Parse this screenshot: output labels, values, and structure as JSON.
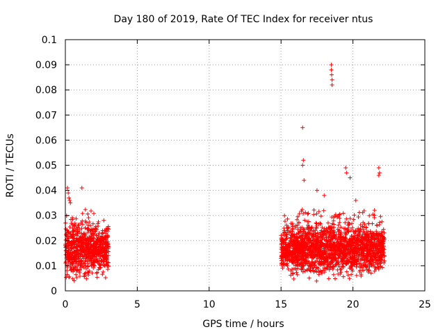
{
  "chart_data": {
    "type": "scatter",
    "title": "Day 180 of 2019, Rate Of TEC Index for receiver ntus",
    "xlabel": "GPS time / hours",
    "ylabel": "ROTI / TECUs",
    "xlim": [
      0,
      25
    ],
    "ylim": [
      0,
      0.1
    ],
    "xticks": [
      "0",
      "5",
      "10",
      "15",
      "20",
      "25"
    ],
    "yticks": [
      "0",
      "0.01",
      "0.02",
      "0.03",
      "0.04",
      "0.05",
      "0.06",
      "0.07",
      "0.08",
      "0.09",
      "0.1"
    ],
    "grid": true,
    "marker": "+",
    "series_color": "#ff0000",
    "clusters": [
      {
        "x_start": 0.0,
        "x_end": 3.0,
        "y_low": 0.003,
        "y_high": 0.03,
        "y_typical": 0.014
      },
      {
        "x_start": 15.0,
        "x_end": 22.2,
        "y_low": 0.003,
        "y_high": 0.03,
        "y_typical": 0.014
      }
    ],
    "outliers": [
      {
        "x": 0.15,
        "y": 0.041
      },
      {
        "x": 0.2,
        "y": 0.039
      },
      {
        "x": 0.25,
        "y": 0.037
      },
      {
        "x": 0.3,
        "y": 0.036
      },
      {
        "x": 0.35,
        "y": 0.035
      },
      {
        "x": 1.15,
        "y": 0.041
      },
      {
        "x": 16.5,
        "y": 0.065
      },
      {
        "x": 16.55,
        "y": 0.052
      },
      {
        "x": 16.5,
        "y": 0.05
      },
      {
        "x": 16.6,
        "y": 0.044
      },
      {
        "x": 17.5,
        "y": 0.04
      },
      {
        "x": 18.5,
        "y": 0.09
      },
      {
        "x": 18.5,
        "y": 0.088
      },
      {
        "x": 18.52,
        "y": 0.086
      },
      {
        "x": 18.55,
        "y": 0.084
      },
      {
        "x": 18.55,
        "y": 0.082
      },
      {
        "x": 19.5,
        "y": 0.049
      },
      {
        "x": 19.55,
        "y": 0.047
      },
      {
        "x": 19.8,
        "y": 0.045
      },
      {
        "x": 21.8,
        "y": 0.049
      },
      {
        "x": 21.85,
        "y": 0.047
      },
      {
        "x": 21.8,
        "y": 0.046
      },
      {
        "x": 18.0,
        "y": 0.038
      },
      {
        "x": 20.2,
        "y": 0.036
      }
    ]
  }
}
